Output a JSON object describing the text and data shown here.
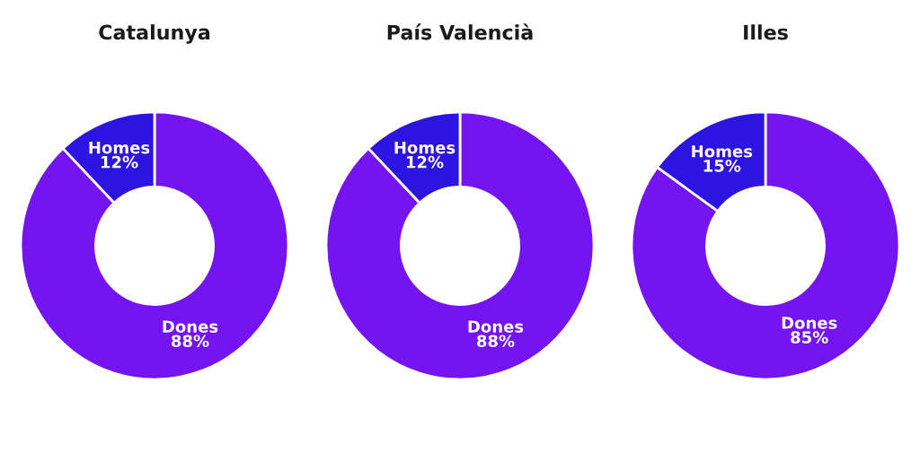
{
  "chart_data": [
    {
      "type": "donut",
      "title": "Catalunya",
      "categories": [
        "Dones",
        "Homes"
      ],
      "values": [
        88,
        12
      ],
      "colors": [
        "#7414f0",
        "#2e14e0"
      ],
      "value_labels": [
        "88%",
        "12%"
      ]
    },
    {
      "type": "donut",
      "title": "País Valencià",
      "categories": [
        "Dones",
        "Homes"
      ],
      "values": [
        88,
        12
      ],
      "colors": [
        "#7414f0",
        "#2e14e0"
      ],
      "value_labels": [
        "88%",
        "12%"
      ]
    },
    {
      "type": "donut",
      "title": "Illes",
      "categories": [
        "Dones",
        "Homes"
      ],
      "values": [
        85,
        15
      ],
      "colors": [
        "#7414f0",
        "#2e14e0"
      ],
      "value_labels": [
        "85%",
        "15%"
      ]
    }
  ]
}
